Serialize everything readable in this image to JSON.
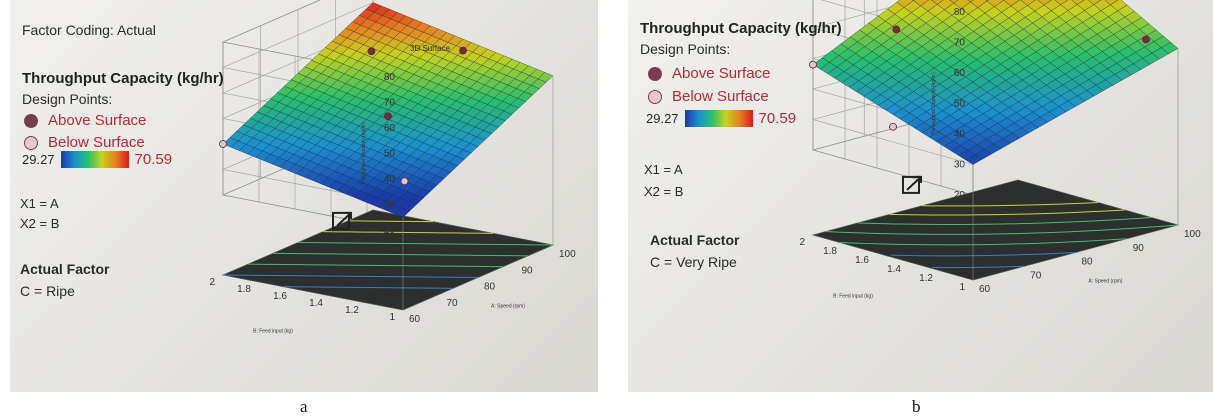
{
  "panels": [
    {
      "factor_coding": "Factor Coding: Actual",
      "surface_title": "3D Surface",
      "response_title": "Throughput Capacity (kg/hr)",
      "design_points_label": "Design Points:",
      "above_label": "Above Surface",
      "below_label": "Below Surface",
      "scale_min": "29.27",
      "scale_max": "70.59",
      "x1_def": "X1 = A",
      "x2_def": "X2 = B",
      "actual_factor_title": "Actual Factor",
      "actual_factor_value": "C = Ripe",
      "subfigure_label": "a"
    },
    {
      "response_title": "Throughput Capacity (kg/hr)",
      "design_points_label": "Design Points:",
      "above_label": "Above Surface",
      "below_label": "Below Surface",
      "scale_min": "29.27",
      "scale_max": "70.59",
      "x1_def": "X1 = A",
      "x2_def": "X2 = B",
      "actual_factor_title": "Actual Factor",
      "actual_factor_value": "C = Very Ripe",
      "subfigure_label": "b"
    }
  ],
  "chart_data": [
    {
      "type": "surface3d",
      "title": "3D Surface",
      "xlabel": "A: Speed (rpm)",
      "ylabel": "B: Feed input (kg)",
      "zlabel": "Throughput Capacity (kg/hr)",
      "x_ticks": [
        60,
        70,
        80,
        90,
        100
      ],
      "y_ticks": [
        1,
        1.2,
        1.4,
        1.6,
        1.8,
        2
      ],
      "z_ticks": [
        20,
        30,
        40,
        50,
        60,
        70,
        80
      ],
      "xlim": [
        60,
        100
      ],
      "ylim": [
        1,
        2
      ],
      "zlim": [
        20,
        80
      ],
      "colormap_range": [
        29.27,
        70.59
      ],
      "surface_corners": [
        {
          "speed": 60,
          "feed": 1,
          "throughput": 25
        },
        {
          "speed": 100,
          "feed": 1,
          "throughput": 55
        },
        {
          "speed": 60,
          "feed": 2,
          "throughput": 40
        },
        {
          "speed": 100,
          "feed": 2,
          "throughput": 70
        }
      ],
      "design_points": [
        {
          "speed": 60,
          "feed": 2,
          "throughput": 40,
          "position": "below"
        },
        {
          "speed": 80,
          "feed": 1.5,
          "throughput": 45,
          "position": "above"
        },
        {
          "speed": 70,
          "feed": 1.2,
          "throughput": 30,
          "position": "below"
        },
        {
          "speed": 100,
          "feed": 1.5,
          "throughput": 58,
          "position": "above"
        },
        {
          "speed": 90,
          "feed": 1.8,
          "throughput": 60,
          "position": "above"
        }
      ]
    },
    {
      "type": "surface3d",
      "title": "",
      "xlabel": "A: Speed (rpm)",
      "ylabel": "B: Feed input (kg)",
      "zlabel": "Throughput Capacity (kg/hr)",
      "x_ticks": [
        60,
        70,
        80,
        90,
        100
      ],
      "y_ticks": [
        1.2,
        1.4,
        1.6,
        1.8,
        2
      ],
      "y_ticks_extra": [
        1
      ],
      "z_ticks": [
        20,
        30,
        40,
        50,
        60,
        70,
        80
      ],
      "xlim": [
        60,
        100
      ],
      "ylim": [
        1,
        2
      ],
      "zlim": [
        20,
        80
      ],
      "colormap_range": [
        29.27,
        70.59
      ],
      "surface_corners": [
        {
          "speed": 60,
          "feed": 1,
          "throughput": 30
        },
        {
          "speed": 100,
          "feed": 1,
          "throughput": 50
        },
        {
          "speed": 60,
          "feed": 2,
          "throughput": 48
        },
        {
          "speed": 100,
          "feed": 2,
          "throughput": 80
        }
      ],
      "design_points": [
        {
          "speed": 60,
          "feed": 2,
          "throughput": 48,
          "position": "below"
        },
        {
          "speed": 70,
          "feed": 1.8,
          "throughput": 58,
          "position": "above"
        },
        {
          "speed": 100,
          "feed": 2,
          "throughput": 80,
          "position": "above"
        },
        {
          "speed": 60,
          "feed": 1.5,
          "throughput": 35,
          "position": "below"
        },
        {
          "speed": 100,
          "feed": 1.2,
          "throughput": 50,
          "position": "above"
        }
      ]
    }
  ]
}
